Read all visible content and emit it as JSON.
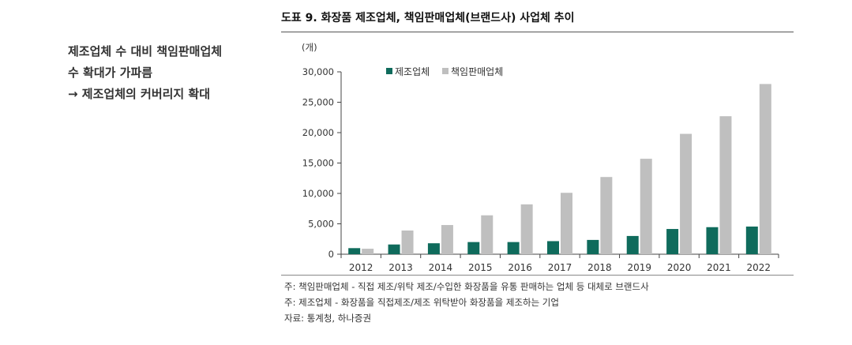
{
  "side": {
    "lines": [
      "제조업체 수 대비 책임판매업체",
      "수 확대가 가파름",
      "→ 제조업체의 커버리지 확대"
    ]
  },
  "figure": {
    "title": "도표 9. 화장품 제조업체, 책임판매업체(브랜드사) 사업체 추이"
  },
  "chart_data": {
    "type": "bar",
    "ylabel": "(개)",
    "categories": [
      "2012",
      "2013",
      "2014",
      "2015",
      "2016",
      "2017",
      "2018",
      "2019",
      "2020",
      "2021",
      "2022"
    ],
    "series": [
      {
        "name": "제조업체",
        "color": "#0f6b5c",
        "values": [
          1000,
          1600,
          1800,
          2000,
          2000,
          2150,
          2350,
          3000,
          4150,
          4450,
          4550
        ]
      },
      {
        "name": "책임판매업체",
        "color": "#bfbfbf",
        "values": [
          900,
          3900,
          4800,
          6400,
          8200,
          10100,
          12700,
          15700,
          19800,
          22700,
          28000
        ]
      }
    ],
    "ylim": [
      0,
      30000
    ],
    "yticks": [
      0,
      5000,
      10000,
      15000,
      20000,
      25000,
      30000
    ],
    "ytick_labels": [
      "0",
      "5,000",
      "10,000",
      "15,000",
      "20,000",
      "25,000",
      "30,000"
    ],
    "legend": "top-left",
    "grid": false
  },
  "notes": [
    "주: 책임판매업체 - 직접 제조/위탁 제조/수입한 화장품을 유통 판매하는 업체 등 대체로 브랜드사",
    "주: 제조업체 - 화장품을 직접제조/제조 위탁받아 화장품을 제조하는 기업",
    "자료: 통계청, 하나증권"
  ]
}
